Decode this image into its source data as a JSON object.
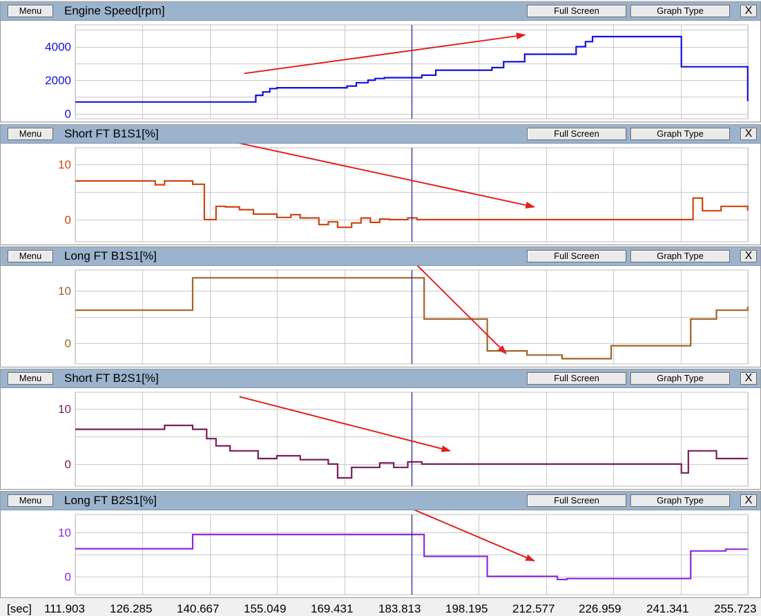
{
  "toolbar": {
    "menu_label": "Menu",
    "full_screen_label": "Full Screen",
    "graph_type_label": "Graph Type",
    "close_label": "X"
  },
  "colors": {
    "titlebar": "#9bb3cc",
    "arrow": "#e02020",
    "cursor": "#1a1a8c",
    "grid": "#c8c8c8"
  },
  "time_axis": {
    "unit": "[sec]",
    "ticks": [
      "111.903",
      "126.285",
      "140.667",
      "155.049",
      "169.431",
      "183.813",
      "198.195",
      "212.577",
      "226.959",
      "241.341",
      "255.723"
    ]
  },
  "cursor_time": 183.813,
  "chart_data": [
    {
      "type": "line",
      "title": "Engine Speed[rpm]",
      "color": "#1010e0",
      "yticks": [
        0,
        2000,
        4000
      ],
      "ylim": [
        -300,
        5300
      ],
      "x": [
        111.9,
        137.0,
        150.5,
        152.0,
        153.5,
        155.0,
        170.0,
        172.0,
        174.5,
        176.0,
        178.0,
        186.0,
        189.0,
        201.0,
        203.5,
        208.0,
        219.0,
        221.0,
        222.5,
        240.0,
        241.5,
        255.7
      ],
      "y": [
        700,
        700,
        1100,
        1300,
        1500,
        1550,
        1650,
        1850,
        2000,
        2100,
        2150,
        2300,
        2600,
        2750,
        3100,
        3550,
        4000,
        4300,
        4600,
        4600,
        2800,
        750
      ],
      "arrow": {
        "from": [
          148.0,
          2400
        ],
        "to": [
          208.0,
          4700
        ]
      }
    },
    {
      "type": "line",
      "title": "Short FT B1S1[%]",
      "color": "#cc4410",
      "yticks": [
        0,
        10
      ],
      "ylim": [
        -4,
        13
      ],
      "x": [
        111.9,
        124.0,
        129.0,
        131.0,
        137.0,
        139.5,
        142.0,
        144.0,
        147.0,
        150.0,
        155.0,
        158.0,
        160.0,
        164.0,
        166.0,
        168.0,
        171.0,
        173.0,
        175.0,
        177.0,
        179.0,
        183.0,
        185.0,
        241.0,
        244.0,
        246.0,
        250.0,
        255.7
      ],
      "y": [
        7.0,
        7.0,
        6.3,
        7.0,
        6.4,
        0.0,
        2.4,
        2.3,
        1.8,
        1.0,
        0.4,
        0.9,
        0.3,
        -0.9,
        -0.4,
        -1.4,
        -0.6,
        0.3,
        -0.5,
        0.1,
        0.0,
        0.3,
        0.0,
        0.0,
        3.9,
        1.6,
        2.4,
        1.6
      ],
      "arrow": {
        "from": [
          145.0,
          14.2
        ],
        "to": [
          210.0,
          2.3
        ]
      }
    },
    {
      "type": "line",
      "title": "Long FT B1S1[%]",
      "color": "#a06428",
      "yticks": [
        0,
        10
      ],
      "ylim": [
        -4,
        14
      ],
      "x": [
        111.9,
        135.0,
        137.0,
        184.0,
        186.5,
        198.0,
        200.0,
        207.0,
        208.5,
        214.0,
        216.0,
        225.0,
        226.5,
        240.0,
        243.5,
        249.0,
        255.7
      ],
      "y": [
        6.3,
        6.3,
        12.5,
        12.5,
        4.6,
        4.6,
        -1.5,
        -1.5,
        -2.3,
        -2.3,
        -3.0,
        -3.0,
        -0.5,
        -0.5,
        4.6,
        6.3,
        7.0
      ],
      "arrow": {
        "from": [
          184.0,
          15.8
        ],
        "to": [
          204.0,
          -2.0
        ]
      }
    },
    {
      "type": "line",
      "title": "Short FT B2S1[%]",
      "color": "#7a1a5a",
      "yticks": [
        0,
        10
      ],
      "ylim": [
        -4,
        13
      ],
      "x": [
        111.9,
        127.0,
        131.0,
        137.0,
        140.0,
        142.0,
        145.0,
        151.0,
        155.0,
        160.0,
        166.0,
        168.0,
        171.0,
        177.0,
        180.0,
        183.0,
        186.0,
        239.0,
        241.5,
        243.0,
        249.0,
        255.7
      ],
      "y": [
        6.3,
        6.3,
        7.0,
        6.3,
        4.6,
        3.3,
        2.4,
        1.0,
        1.5,
        0.8,
        0.0,
        -2.5,
        -0.6,
        0.2,
        -0.6,
        0.4,
        0.0,
        0.0,
        -1.6,
        2.4,
        1.0,
        1.0
      ],
      "arrow": {
        "from": [
          147.0,
          12.2
        ],
        "to": [
          192.0,
          2.4
        ]
      }
    },
    {
      "type": "line",
      "title": "Long FT B2S1[%]",
      "color": "#8c28e0",
      "yticks": [
        0,
        10
      ],
      "ylim": [
        -4,
        14
      ],
      "x": [
        111.9,
        135.0,
        137.0,
        184.0,
        186.5,
        198.0,
        200.0,
        214.0,
        215.0,
        217.0,
        240.0,
        243.5,
        251.0,
        255.7
      ],
      "y": [
        6.3,
        6.3,
        9.5,
        9.5,
        4.6,
        4.6,
        0.1,
        0.1,
        -0.6,
        -0.4,
        -0.4,
        5.8,
        6.2,
        6.2
      ],
      "arrow": {
        "from": [
          180.0,
          17.0
        ],
        "to": [
          210.0,
          3.6
        ]
      }
    }
  ]
}
